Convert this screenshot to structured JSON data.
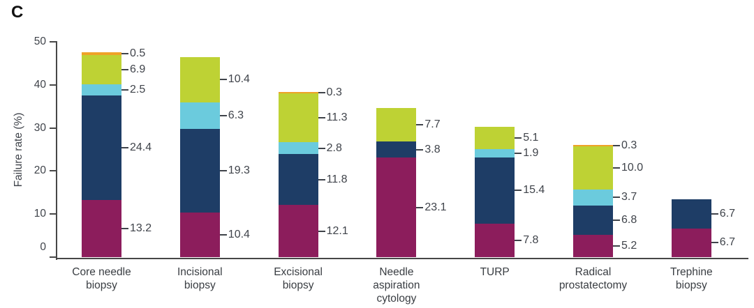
{
  "panel_label": "C",
  "chart_data": {
    "type": "bar",
    "stacked": true,
    "title": "",
    "xlabel": "",
    "ylabel": "Failure rate (%)",
    "ylim": [
      0,
      50
    ],
    "yticks": [
      0,
      10,
      20,
      30,
      40,
      50
    ],
    "grid": false,
    "legend_position": "none",
    "data_labels": "each segment labeled with its value to one decimal, leader dash at right side of bar",
    "categories": [
      "Core needle\nbiopsy",
      "Incisional\nbiopsy",
      "Excisional\nbiopsy",
      "Needle\naspiration\ncytology",
      "TURP",
      "Radical\nprostatectomy",
      "Trephine\nbiopsy"
    ],
    "series": [
      {
        "name": "series-1-magenta",
        "color": "#8C1D5C",
        "values": [
          13.2,
          10.4,
          12.1,
          23.1,
          7.8,
          5.2,
          6.7
        ]
      },
      {
        "name": "series-2-navy",
        "color": "#1E3D66",
        "values": [
          24.4,
          19.3,
          11.8,
          3.8,
          15.4,
          6.8,
          6.7
        ]
      },
      {
        "name": "series-3-cyan",
        "color": "#6BCBDD",
        "values": [
          2.5,
          6.3,
          2.8,
          0,
          1.9,
          3.7,
          0
        ]
      },
      {
        "name": "series-4-green",
        "color": "#BED234",
        "values": [
          6.9,
          10.4,
          11.3,
          7.7,
          5.1,
          10.0,
          0
        ]
      },
      {
        "name": "series-5-orange",
        "color": "#EFA228",
        "values": [
          0.5,
          0,
          0.3,
          0,
          0,
          0.3,
          0
        ]
      }
    ]
  }
}
